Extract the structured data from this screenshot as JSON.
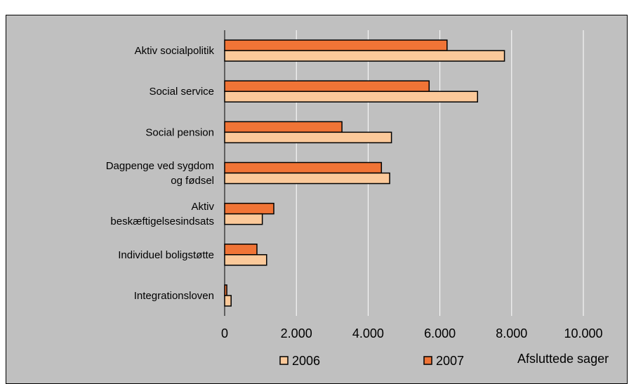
{
  "colors": {
    "background": "#c0c0c0",
    "gridline": "#ffffff",
    "series_2006": "#fbc99a",
    "series_2007": "#f07436",
    "bar_stroke": "#000000"
  },
  "chart_data": {
    "type": "bar",
    "orientation": "horizontal",
    "categories": [
      [
        "Aktiv socialpolitik"
      ],
      [
        "Social service"
      ],
      [
        "Social pension"
      ],
      [
        "Dagpenge ved sygdom",
        "og fødsel"
      ],
      [
        "Aktiv",
        "beskæftigelsesindsats"
      ],
      [
        "Individuel boligstøtte"
      ],
      [
        "Integrationsloven"
      ]
    ],
    "series": [
      {
        "name": "2007",
        "values": [
          6200,
          5700,
          3270,
          4370,
          1370,
          900,
          60
        ]
      },
      {
        "name": "2006",
        "values": [
          7800,
          7050,
          4650,
          4600,
          1050,
          1170,
          180
        ]
      }
    ],
    "xlim": [
      0,
      10000
    ],
    "xticks": [
      {
        "value": 0,
        "label": "0"
      },
      {
        "value": 2000,
        "label": "2.000"
      },
      {
        "value": 4000,
        "label": "4.000"
      },
      {
        "value": 6000,
        "label": "6.000"
      },
      {
        "value": 8000,
        "label": "8.000"
      },
      {
        "value": 10000,
        "label": "10.000"
      }
    ],
    "xlabel": "Afsluttede sager",
    "legend_order": [
      "2006",
      "2007"
    ],
    "legend_position": "bottom",
    "grid": "vertical"
  }
}
